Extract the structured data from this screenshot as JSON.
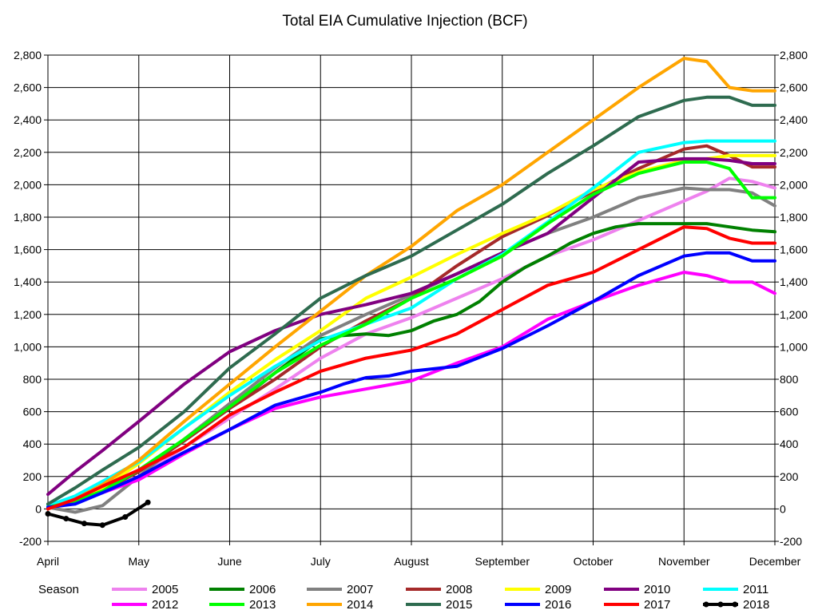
{
  "chart_data": {
    "type": "line",
    "title": "Total EIA Cumulative Injection (BCF)",
    "xlabel": "",
    "ylabel": "",
    "x_tick_labels": [
      "April",
      "May",
      "June",
      "July",
      "August",
      "September",
      "October",
      "November",
      "December"
    ],
    "xlim": [
      0,
      8
    ],
    "ylim": [
      -200,
      2800
    ],
    "y_ticks": [
      -200,
      0,
      200,
      400,
      600,
      800,
      1000,
      1200,
      1400,
      1600,
      1800,
      2000,
      2200,
      2400,
      2600,
      2800
    ],
    "y_tick_labels": [
      "-200",
      "0",
      "200",
      "400",
      "600",
      "800",
      "1,000",
      "1,200",
      "1,400",
      "1,600",
      "1,800",
      "2,000",
      "2,200",
      "2,400",
      "2,600",
      "2,800"
    ],
    "grid": true,
    "legend_position": "bottom",
    "legend_title": "Season",
    "series": [
      {
        "name": "2005",
        "color": "#ee82ee",
        "x": [
          0,
          0.3,
          0.6,
          1,
          1.5,
          2,
          2.5,
          3,
          3.5,
          4,
          4.5,
          5,
          5.5,
          6,
          6.5,
          7,
          7.25,
          7.5,
          7.75,
          8
        ],
        "y": [
          20,
          50,
          100,
          200,
          380,
          560,
          740,
          930,
          1080,
          1180,
          1300,
          1420,
          1560,
          1660,
          1780,
          1900,
          1960,
          2040,
          2020,
          1980
        ]
      },
      {
        "name": "2006",
        "color": "#008000",
        "x": [
          0,
          0.3,
          0.6,
          1,
          1.5,
          2,
          2.5,
          3,
          3.25,
          3.5,
          3.75,
          4,
          4.25,
          4.5,
          4.75,
          5,
          5.25,
          5.5,
          5.75,
          6,
          6.25,
          6.5,
          7,
          7.25,
          7.5,
          7.75,
          8
        ],
        "y": [
          30,
          60,
          120,
          230,
          420,
          620,
          840,
          1050,
          1070,
          1080,
          1070,
          1100,
          1160,
          1200,
          1280,
          1400,
          1490,
          1560,
          1640,
          1700,
          1740,
          1760,
          1760,
          1760,
          1740,
          1720,
          1710
        ]
      },
      {
        "name": "2007",
        "color": "#808080",
        "x": [
          0,
          0.3,
          0.6,
          1,
          1.5,
          2,
          2.5,
          3,
          3.5,
          4,
          4.5,
          5,
          5.5,
          6,
          6.5,
          7,
          7.25,
          7.5,
          7.75,
          8
        ],
        "y": [
          10,
          -20,
          20,
          200,
          430,
          650,
          870,
          1070,
          1200,
          1320,
          1450,
          1580,
          1700,
          1800,
          1920,
          1980,
          1970,
          1970,
          1950,
          1870
        ]
      },
      {
        "name": "2008",
        "color": "#a52a2a",
        "x": [
          0,
          0.3,
          0.6,
          1,
          1.5,
          2,
          2.5,
          3,
          3.5,
          4,
          4.5,
          5,
          5.5,
          6,
          6.5,
          7,
          7.25,
          7.5,
          7.75,
          8
        ],
        "y": [
          10,
          40,
          110,
          230,
          420,
          620,
          800,
          1000,
          1160,
          1300,
          1500,
          1680,
          1810,
          1960,
          2100,
          2220,
          2240,
          2180,
          2110,
          2110
        ]
      },
      {
        "name": "2009",
        "color": "#ffff00",
        "x": [
          0,
          0.3,
          0.6,
          1,
          1.5,
          2,
          2.5,
          3,
          3.5,
          4,
          4.5,
          5,
          5.5,
          6,
          6.5,
          7,
          7.25,
          7.5,
          7.75,
          8
        ],
        "y": [
          20,
          60,
          130,
          280,
          500,
          720,
          920,
          1100,
          1300,
          1430,
          1570,
          1700,
          1820,
          1970,
          2080,
          2150,
          2160,
          2180,
          2180,
          2180
        ]
      },
      {
        "name": "2010",
        "color": "#800080",
        "x": [
          0,
          0.3,
          0.6,
          1,
          1.5,
          2,
          2.5,
          3,
          3.5,
          4,
          4.5,
          5,
          5.5,
          6,
          6.5,
          7,
          7.25,
          7.5,
          7.75,
          8
        ],
        "y": [
          90,
          230,
          360,
          540,
          770,
          970,
          1100,
          1200,
          1260,
          1330,
          1450,
          1580,
          1700,
          1920,
          2140,
          2160,
          2160,
          2150,
          2130,
          2130
        ]
      },
      {
        "name": "2011",
        "color": "#00ffff",
        "x": [
          0,
          0.3,
          0.6,
          1,
          1.5,
          2,
          2.5,
          3,
          3.5,
          4,
          4.5,
          5,
          5.5,
          6,
          6.5,
          7,
          7.25,
          7.5,
          7.75,
          8
        ],
        "y": [
          20,
          80,
          170,
          290,
          500,
          700,
          880,
          1040,
          1140,
          1240,
          1420,
          1570,
          1770,
          1980,
          2200,
          2260,
          2270,
          2270,
          2270,
          2270
        ]
      },
      {
        "name": "2012",
        "color": "#ff00ff",
        "x": [
          0,
          0.3,
          0.6,
          1,
          1.5,
          2,
          2.5,
          3,
          3.5,
          4,
          4.5,
          5,
          5.5,
          6,
          6.5,
          7,
          7.25,
          7.5,
          7.75,
          8
        ],
        "y": [
          10,
          40,
          100,
          180,
          340,
          490,
          620,
          690,
          740,
          790,
          900,
          1000,
          1170,
          1280,
          1380,
          1460,
          1440,
          1400,
          1400,
          1330
        ]
      },
      {
        "name": "2013",
        "color": "#00ff00",
        "x": [
          0,
          0.3,
          0.6,
          1,
          1.5,
          2,
          2.5,
          3,
          3.5,
          4,
          4.5,
          5,
          5.5,
          6,
          6.5,
          7,
          7.25,
          7.5,
          7.75,
          8
        ],
        "y": [
          10,
          50,
          110,
          240,
          430,
          630,
          840,
          1010,
          1140,
          1300,
          1420,
          1560,
          1760,
          1940,
          2070,
          2140,
          2140,
          2100,
          1920,
          1920
        ]
      },
      {
        "name": "2014",
        "color": "#ffa500",
        "x": [
          0,
          0.3,
          0.6,
          1,
          1.5,
          2,
          2.5,
          3,
          3.5,
          4,
          4.5,
          5,
          5.5,
          6,
          6.5,
          7,
          7.25,
          7.5,
          7.75,
          8
        ],
        "y": [
          0,
          60,
          150,
          300,
          540,
          770,
          1000,
          1220,
          1440,
          1620,
          1840,
          2000,
          2200,
          2400,
          2600,
          2780,
          2760,
          2600,
          2580,
          2580
        ]
      },
      {
        "name": "2015",
        "color": "#2e6b4f",
        "x": [
          0,
          0.3,
          0.6,
          1,
          1.5,
          2,
          2.5,
          3,
          3.5,
          4,
          4.5,
          5,
          5.5,
          6,
          6.5,
          7,
          7.25,
          7.5,
          7.75,
          8
        ],
        "y": [
          30,
          130,
          240,
          380,
          600,
          870,
          1080,
          1300,
          1440,
          1560,
          1720,
          1880,
          2070,
          2240,
          2420,
          2520,
          2540,
          2540,
          2490,
          2490
        ]
      },
      {
        "name": "2016",
        "color": "#0000ff",
        "x": [
          0,
          0.3,
          0.6,
          1,
          1.5,
          2,
          2.5,
          3,
          3.25,
          3.5,
          3.75,
          4,
          4.5,
          5,
          5.5,
          6,
          6.5,
          7,
          7.25,
          7.5,
          7.75,
          8
        ],
        "y": [
          10,
          30,
          100,
          200,
          350,
          490,
          640,
          720,
          770,
          810,
          820,
          850,
          880,
          990,
          1130,
          1280,
          1440,
          1560,
          1580,
          1580,
          1530,
          1530
        ]
      },
      {
        "name": "2017",
        "color": "#ff0000",
        "x": [
          0,
          0.3,
          0.6,
          1,
          1.5,
          2,
          2.5,
          3,
          3.5,
          4,
          4.5,
          5,
          5.5,
          6,
          6.5,
          7,
          7.25,
          7.5,
          7.75,
          8
        ],
        "y": [
          0,
          60,
          140,
          240,
          380,
          580,
          720,
          850,
          930,
          980,
          1080,
          1230,
          1380,
          1460,
          1600,
          1740,
          1730,
          1670,
          1640,
          1640
        ]
      },
      {
        "name": "2018",
        "color": "#000000",
        "markers": true,
        "x": [
          0,
          0.2,
          0.4,
          0.6,
          0.85,
          1.1
        ],
        "y": [
          -30,
          -60,
          -90,
          -100,
          -50,
          40
        ]
      }
    ]
  }
}
